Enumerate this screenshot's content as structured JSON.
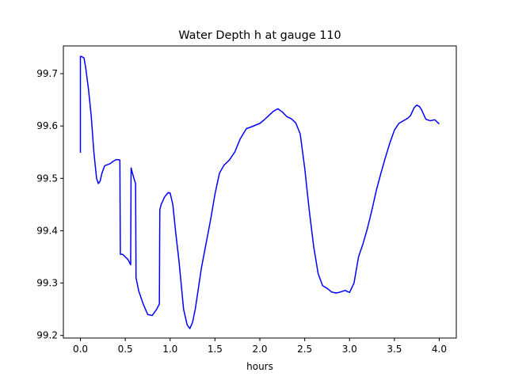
{
  "chart_data": {
    "type": "line",
    "title": "Water Depth h at gauge 110",
    "xlabel": "hours",
    "ylabel": "",
    "xlim": [
      -0.19,
      4.19
    ],
    "ylim": [
      99.195,
      99.753
    ],
    "xticks": [
      0.0,
      0.5,
      1.0,
      1.5,
      2.0,
      2.5,
      3.0,
      3.5,
      4.0
    ],
    "xtick_labels": [
      "0.0",
      "0.5",
      "1.0",
      "1.5",
      "2.0",
      "2.5",
      "3.0",
      "3.5",
      "4.0"
    ],
    "yticks": [
      99.2,
      99.3,
      99.4,
      99.5,
      99.6,
      99.7
    ],
    "ytick_labels": [
      "99.2",
      "99.3",
      "99.4",
      "99.5",
      "99.6",
      "99.7"
    ],
    "grid": false,
    "series": [
      {
        "color": "#0000ff",
        "x": [
          0.0,
          0.0,
          0.01,
          0.04,
          0.06,
          0.09,
          0.12,
          0.15,
          0.18,
          0.2,
          0.22,
          0.24,
          0.27,
          0.3,
          0.33,
          0.36,
          0.4,
          0.44,
          0.445,
          0.47,
          0.5,
          0.53,
          0.56,
          0.565,
          0.58,
          0.6,
          0.615,
          0.62,
          0.65,
          0.7,
          0.75,
          0.8,
          0.85,
          0.88,
          0.885,
          0.9,
          0.94,
          0.98,
          1.0,
          1.03,
          1.06,
          1.1,
          1.15,
          1.19,
          1.22,
          1.25,
          1.28,
          1.35,
          1.45,
          1.5,
          1.55,
          1.6,
          1.66,
          1.72,
          1.78,
          1.85,
          1.9,
          2.0,
          2.05,
          2.1,
          2.15,
          2.2,
          2.25,
          2.3,
          2.35,
          2.4,
          2.45,
          2.5,
          2.55,
          2.6,
          2.65,
          2.7,
          2.75,
          2.8,
          2.85,
          2.9,
          2.95,
          3.0,
          3.05,
          3.1,
          3.15,
          3.2,
          3.25,
          3.3,
          3.35,
          3.4,
          3.45,
          3.5,
          3.55,
          3.6,
          3.65,
          3.68,
          3.72,
          3.75,
          3.78,
          3.8,
          3.85,
          3.9,
          3.95,
          4.0
        ],
        "y": [
          99.549,
          99.733,
          99.733,
          99.73,
          99.71,
          99.67,
          99.62,
          99.55,
          99.5,
          99.49,
          99.495,
          99.51,
          99.524,
          99.526,
          99.528,
          99.532,
          99.536,
          99.535,
          99.355,
          99.355,
          99.35,
          99.345,
          99.335,
          99.52,
          99.51,
          99.498,
          99.49,
          99.31,
          99.285,
          99.26,
          99.24,
          99.238,
          99.25,
          99.26,
          99.44,
          99.45,
          99.465,
          99.473,
          99.472,
          99.45,
          99.4,
          99.34,
          99.25,
          99.22,
          99.213,
          99.225,
          99.25,
          99.33,
          99.42,
          99.47,
          99.51,
          99.525,
          99.535,
          99.55,
          99.575,
          99.595,
          99.598,
          99.605,
          99.612,
          99.62,
          99.628,
          99.633,
          99.627,
          99.618,
          99.614,
          99.606,
          99.585,
          99.52,
          99.44,
          99.37,
          99.318,
          99.295,
          99.29,
          99.283,
          99.281,
          99.283,
          99.286,
          99.282,
          99.3,
          99.35,
          99.375,
          99.405,
          99.44,
          99.478,
          99.51,
          99.54,
          99.568,
          99.592,
          99.605,
          99.61,
          99.615,
          99.62,
          99.635,
          99.64,
          99.637,
          99.632,
          99.613,
          99.61,
          99.612,
          99.604
        ]
      }
    ]
  }
}
